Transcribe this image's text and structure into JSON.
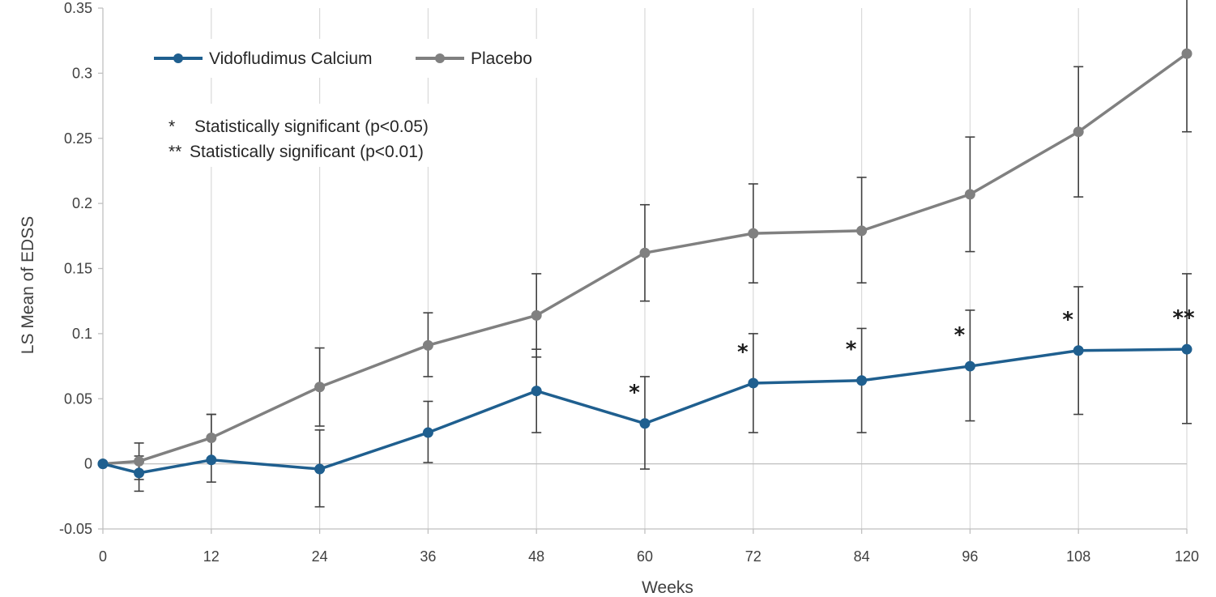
{
  "chart_data": {
    "type": "line",
    "xlabel": "Weeks",
    "ylabel": "LS Mean of EDSS",
    "xlim": [
      0,
      120
    ],
    "ylim": [
      -0.05,
      0.35
    ],
    "x_ticks": [
      0,
      12,
      24,
      36,
      48,
      60,
      72,
      84,
      96,
      108,
      120
    ],
    "y_ticks": [
      -0.05,
      0,
      0.05,
      0.1,
      0.15,
      0.2,
      0.25,
      0.3,
      0.35
    ],
    "y_tick_labels": [
      "-0.05",
      "0",
      "0.05",
      "0.1",
      "0.15",
      "0.2",
      "0.25",
      "0.3",
      "0.35"
    ],
    "grid": "vertical",
    "legend_position": "top-left",
    "series": [
      {
        "name": "Vidofludimus Calcium",
        "color": "#1f5f8f",
        "x": [
          0,
          4,
          12,
          24,
          36,
          48,
          60,
          72,
          84,
          96,
          108,
          120
        ],
        "y": [
          0,
          -0.007,
          0.003,
          -0.004,
          0.024,
          0.056,
          0.031,
          0.062,
          0.064,
          0.075,
          0.087,
          0.088
        ],
        "err_low": [
          0,
          -0.021,
          -0.014,
          -0.033,
          0.001,
          0.024,
          -0.004,
          0.024,
          0.024,
          0.033,
          0.038,
          0.031
        ],
        "err_high": [
          0,
          0.006,
          0.038,
          0.026,
          0.048,
          0.088,
          0.067,
          0.1,
          0.104,
          0.118,
          0.136,
          0.146
        ]
      },
      {
        "name": "Placebo",
        "color": "#808080",
        "x": [
          0,
          4,
          12,
          24,
          36,
          48,
          60,
          72,
          84,
          96,
          108,
          120
        ],
        "y": [
          0,
          0.002,
          0.02,
          0.059,
          0.091,
          0.114,
          0.162,
          0.177,
          0.179,
          0.207,
          0.255,
          0.315
        ],
        "err_low": [
          0,
          -0.012,
          0.003,
          0.029,
          0.067,
          0.082,
          0.125,
          0.139,
          0.139,
          0.163,
          0.205,
          0.255
        ],
        "err_high": [
          0,
          0.016,
          0.038,
          0.089,
          0.116,
          0.146,
          0.199,
          0.215,
          0.22,
          0.251,
          0.305,
          0.375
        ]
      }
    ],
    "annotations": [
      {
        "x": 60,
        "y": 0.031,
        "text": "*"
      },
      {
        "x": 72,
        "y": 0.062,
        "text": "*"
      },
      {
        "x": 84,
        "y": 0.064,
        "text": "*"
      },
      {
        "x": 96,
        "y": 0.075,
        "text": "*"
      },
      {
        "x": 108,
        "y": 0.087,
        "text": "*"
      },
      {
        "x": 120,
        "y": 0.088,
        "text": "**"
      }
    ],
    "notes": [
      {
        "marker": "*",
        "text": "Statistically significant (p<0.05)"
      },
      {
        "marker": "**",
        "text": "Statistically significant (p<0.01)"
      }
    ]
  }
}
